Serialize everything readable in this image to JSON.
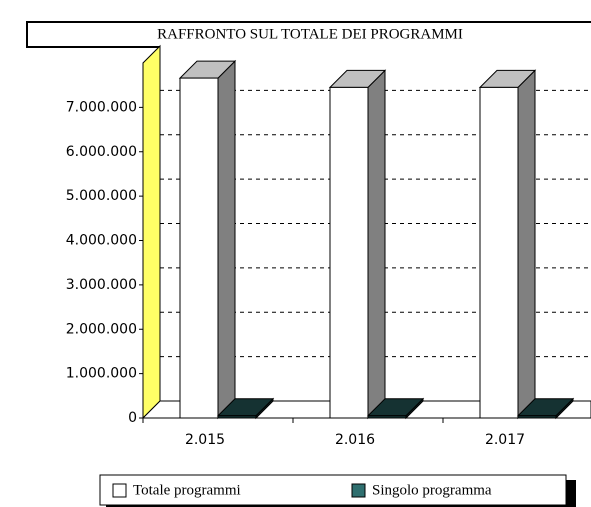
{
  "chart_data": {
    "type": "bar3d",
    "title": "RAFFRONTO SUL TOTALE DEI PROGRAMMI",
    "categories": [
      "2.015",
      "2.016",
      "2.017"
    ],
    "series": [
      {
        "name": "Totale programmi",
        "color": "#ffffff",
        "values": [
          7660000,
          7450000,
          7450000
        ]
      },
      {
        "name": "Singolo programma",
        "color": "#2f6f6f",
        "values": [
          50000,
          50000,
          50000
        ]
      }
    ],
    "ylim": [
      0,
      8000000
    ],
    "yticks": [
      0,
      {
        "value": 1000000,
        "label": "1.000.000"
      },
      {
        "value": 2000000,
        "label": "2.000.000"
      },
      {
        "value": 3000000,
        "label": "3.000.000"
      },
      {
        "value": 4000000,
        "label": "4.000.000"
      },
      {
        "value": 5000000,
        "label": "5.000.000"
      },
      {
        "value": 6000000,
        "label": "6.000.000"
      },
      {
        "value": 7000000,
        "label": "7.000.000"
      }
    ],
    "grid": true
  }
}
